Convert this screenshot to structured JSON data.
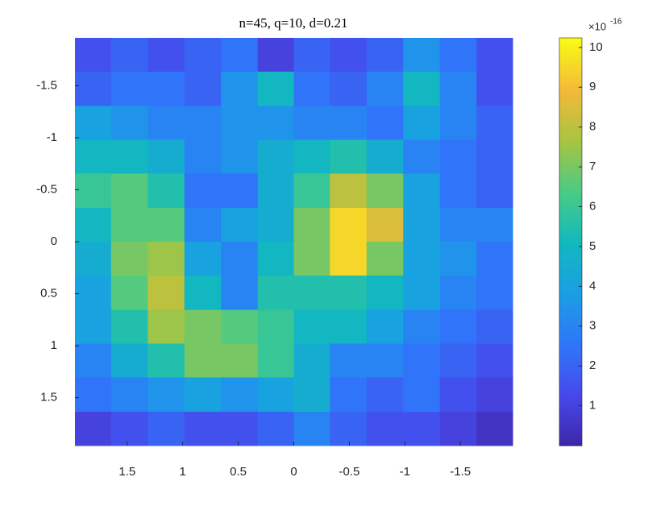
{
  "chart_data": {
    "type": "heatmap",
    "title": "n=45, q=10, d=0.21",
    "colormap": "parula",
    "x": [
      1.81,
      1.48,
      1.15,
      0.82,
      0.49,
      0.16,
      -0.16,
      -0.49,
      -0.82,
      -1.15,
      -1.48,
      -1.81
    ],
    "y": [
      -1.8,
      -1.47,
      -1.14,
      -0.82,
      -0.49,
      -0.16,
      0.16,
      0.49,
      0.82,
      1.14,
      1.47,
      1.8
    ],
    "z": [
      [
        1.5,
        2,
        1.5,
        2,
        2.5,
        1,
        2,
        1.5,
        2,
        3.5,
        2.5,
        1.5
      ],
      [
        2,
        2.5,
        2.5,
        2,
        3.5,
        5,
        2.5,
        2,
        3,
        5,
        3,
        1.5
      ],
      [
        4,
        3.5,
        3,
        3,
        3.5,
        3.5,
        3,
        3,
        2.5,
        4,
        3,
        2
      ],
      [
        5,
        5,
        4.5,
        3,
        3.5,
        4.5,
        5,
        5.5,
        4.5,
        3,
        2.5,
        2
      ],
      [
        6,
        6.5,
        5.5,
        2.5,
        2.5,
        4.5,
        6,
        8,
        7,
        4,
        2.5,
        2
      ],
      [
        5,
        6.5,
        6.5,
        3,
        4,
        4.5,
        7,
        9.5,
        8.5,
        4,
        3,
        3
      ],
      [
        4.5,
        7,
        7.5,
        4,
        3,
        5,
        7,
        9.5,
        7,
        4,
        3.5,
        2.5
      ],
      [
        4,
        6.5,
        8,
        5,
        3,
        5.5,
        5.5,
        5.5,
        5,
        4,
        3,
        2.5
      ],
      [
        4,
        5.5,
        7.5,
        7,
        6.5,
        6,
        5,
        5,
        4,
        3,
        2.5,
        2
      ],
      [
        3,
        4.5,
        5.5,
        7,
        7,
        6,
        4.5,
        3,
        3,
        2.5,
        2,
        1.5
      ],
      [
        2.5,
        3,
        3.5,
        4,
        3.5,
        4,
        4.5,
        2.5,
        2,
        2.5,
        1.5,
        1
      ],
      [
        1,
        1.5,
        2,
        1.5,
        1.5,
        2,
        3,
        2,
        1.5,
        1.5,
        1,
        0.5
      ]
    ],
    "xlim": [
      1.97,
      -1.97
    ],
    "xticks": [
      1.5,
      1,
      0.5,
      0,
      -0.5,
      -1,
      -1.5
    ],
    "ylim": [
      -1.96,
      1.96
    ],
    "yticks": [
      -1.5,
      -1,
      -0.5,
      0,
      0.5,
      1,
      1.5
    ],
    "clim": [
      0,
      10.24
    ],
    "cticks": [
      1,
      2,
      3,
      4,
      5,
      6,
      7,
      8,
      9,
      10
    ],
    "colorbar_multiplier": "×10",
    "colorbar_exponent": "-16"
  }
}
